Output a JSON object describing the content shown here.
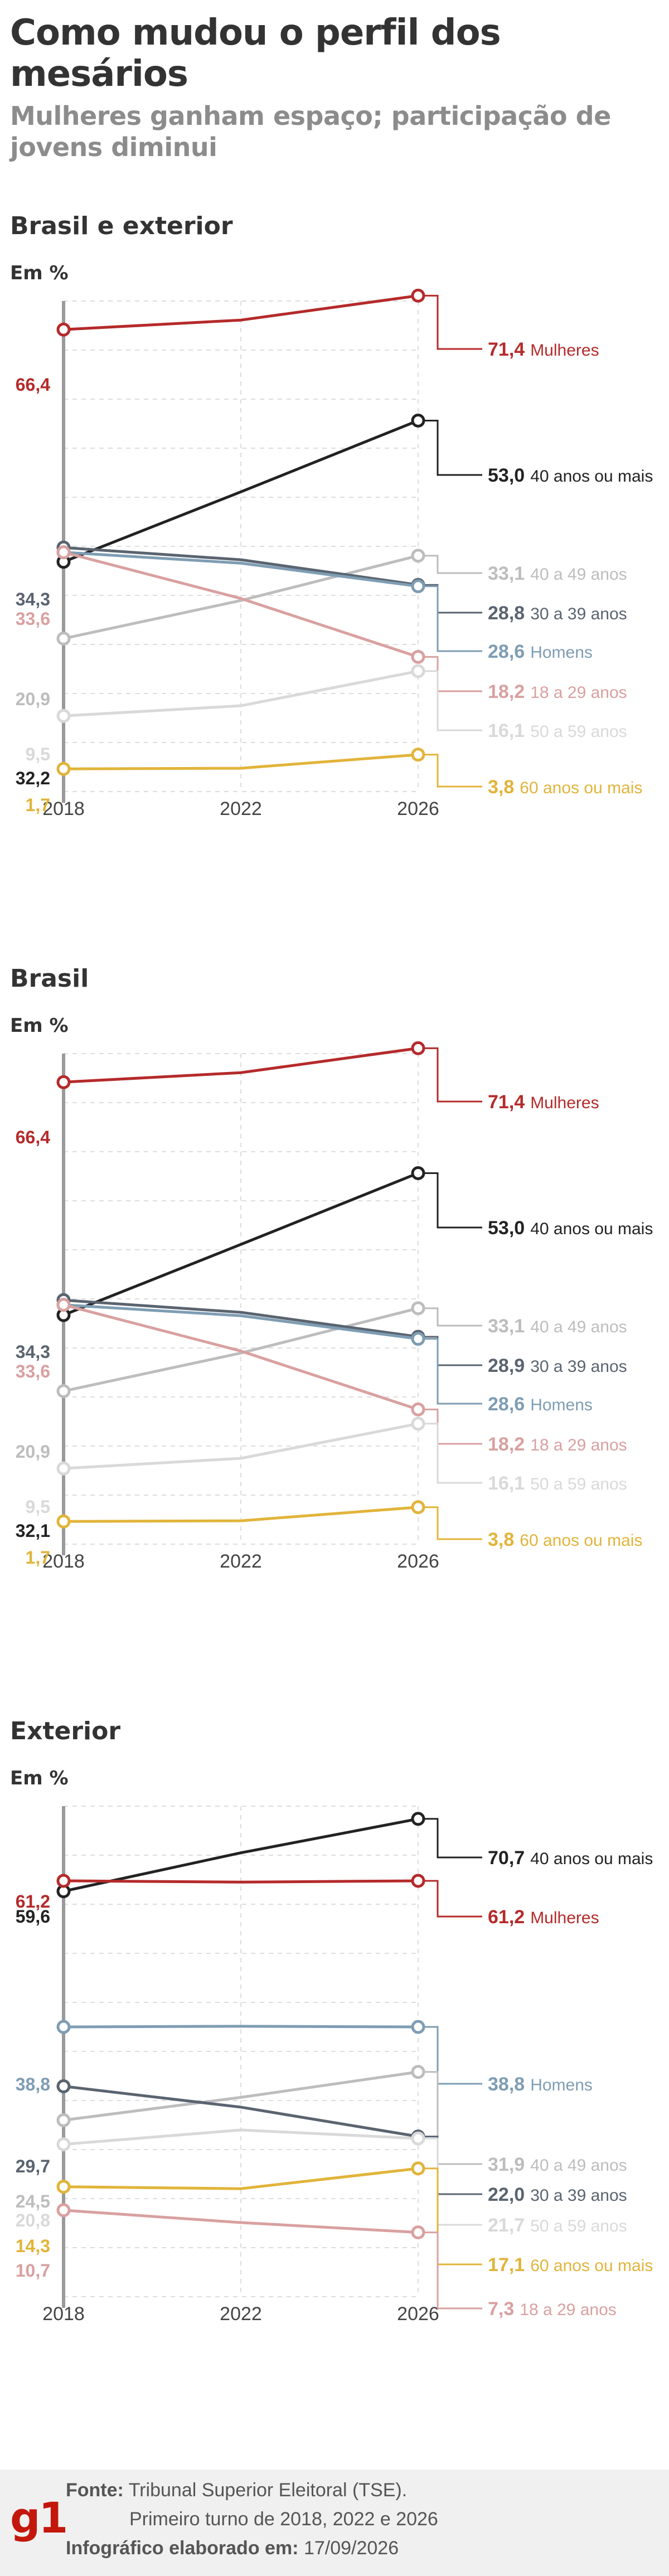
{
  "title": "Como mudou o perfil dos mesários",
  "subtitle": "Mulheres ganham espaço; participação de jovens diminui",
  "colors": {
    "mulheres": "#b52a2a",
    "jovens": "#d9a0a0",
    "mais40": "#222222",
    "faixa40a49": "#bdbdbd",
    "faixa30a39": "#5a6470",
    "homens": "#7e9db3",
    "faixa50a59": "#d9d9d9",
    "mais60": "#e1b43a",
    "axis": "#999999",
    "grid": "#dddddd"
  },
  "chart_data": [
    {
      "type": "line",
      "title": "Brasil e exterior",
      "ylabel": "Em %",
      "x": [
        "2018",
        "2022",
        "2026"
      ],
      "series": [
        {
          "name": "Mulheres",
          "values": [
            66.4,
            67.8,
            71.4
          ],
          "label_start": "66,4",
          "label_end": "71,4",
          "color_key": "mulheres"
        },
        {
          "name": "40 anos ou mais",
          "values": [
            32.2,
            42.5,
            53.0
          ],
          "label_start": "32,2",
          "label_end": "53,0",
          "color_key": "mais40"
        },
        {
          "name": "40 a 49 anos",
          "values": [
            20.9,
            26.5,
            33.1
          ],
          "label_start": "20,9",
          "label_end": "33,1",
          "color_key": "faixa40a49"
        },
        {
          "name": "30 a 39 anos",
          "values": [
            34.3,
            32.5,
            28.8
          ],
          "label_start": "34,3",
          "label_end": "28,8",
          "color_key": "faixa30a39"
        },
        {
          "name": "Homens",
          "values": [
            33.6,
            32.0,
            28.6
          ],
          "label_start": "",
          "label_end": "28,6",
          "color_key": "homens"
        },
        {
          "name": "18 a 29 anos",
          "values": [
            33.6,
            26.8,
            18.2
          ],
          "label_start": "33,6",
          "label_end": "18,2",
          "color_key": "jovens"
        },
        {
          "name": "50 a 59 anos",
          "values": [
            9.5,
            11.0,
            16.1
          ],
          "label_start": "9,5",
          "label_end": "16,1",
          "color_key": "faixa50a59"
        },
        {
          "name": "60 anos ou mais",
          "values": [
            1.7,
            1.8,
            3.8
          ],
          "label_start": "1,7",
          "label_end": "3,8",
          "color_key": "mais60"
        }
      ]
    },
    {
      "type": "line",
      "title": "Brasil",
      "ylabel": "Em %",
      "x": [
        "2018",
        "2022",
        "2026"
      ],
      "series": [
        {
          "name": "Mulheres",
          "values": [
            66.4,
            67.8,
            71.4
          ],
          "label_start": "66,4",
          "label_end": "71,4",
          "color_key": "mulheres"
        },
        {
          "name": "40 anos ou mais",
          "values": [
            32.1,
            42.5,
            53.0
          ],
          "label_start": "32,1",
          "label_end": "53,0",
          "color_key": "mais40"
        },
        {
          "name": "40 a 49 anos",
          "values": [
            20.9,
            26.5,
            33.1
          ],
          "label_start": "20,9",
          "label_end": "33,1",
          "color_key": "faixa40a49"
        },
        {
          "name": "30 a 39 anos",
          "values": [
            34.3,
            32.5,
            28.9
          ],
          "label_start": "34,3",
          "label_end": "28,9",
          "color_key": "faixa30a39"
        },
        {
          "name": "Homens",
          "values": [
            33.6,
            32.0,
            28.6
          ],
          "label_start": "",
          "label_end": "28,6",
          "color_key": "homens"
        },
        {
          "name": "18 a 29 anos",
          "values": [
            33.6,
            26.8,
            18.2
          ],
          "label_start": "33,6",
          "label_end": "18,2",
          "color_key": "jovens"
        },
        {
          "name": "50 a 59 anos",
          "values": [
            9.5,
            11.0,
            16.1
          ],
          "label_start": "9,5",
          "label_end": "16,1",
          "color_key": "faixa50a59"
        },
        {
          "name": "60 anos ou mais",
          "values": [
            1.7,
            1.8,
            3.8
          ],
          "label_start": "1,7",
          "label_end": "3,8",
          "color_key": "mais60"
        }
      ]
    },
    {
      "type": "line",
      "title": "Exterior",
      "ylabel": "Em %",
      "x": [
        "2018",
        "2022",
        "2026"
      ],
      "series": [
        {
          "name": "40 anos ou mais",
          "values": [
            59.6,
            65.5,
            70.7
          ],
          "label_start": "59,6",
          "label_end": "70,7",
          "color_key": "mais40"
        },
        {
          "name": "Mulheres",
          "values": [
            61.2,
            61.0,
            61.2
          ],
          "label_start": "61,2",
          "label_end": "61,2",
          "color_key": "mulheres"
        },
        {
          "name": "Homens",
          "values": [
            38.8,
            38.9,
            38.8
          ],
          "label_start": "38,8",
          "label_end": "38,8",
          "color_key": "homens"
        },
        {
          "name": "40 a 49 anos",
          "values": [
            24.5,
            28.0,
            31.9
          ],
          "label_start": "24,5",
          "label_end": "31,9",
          "color_key": "faixa40a49"
        },
        {
          "name": "30 a 39 anos",
          "values": [
            29.7,
            26.5,
            22.0
          ],
          "label_start": "29,7",
          "label_end": "22,0",
          "color_key": "faixa30a39"
        },
        {
          "name": "50 a 59 anos",
          "values": [
            20.8,
            23.0,
            21.7
          ],
          "label_start": "20,8",
          "label_end": "21,7",
          "color_key": "faixa50a59"
        },
        {
          "name": "60 anos ou mais",
          "values": [
            14.3,
            14.0,
            17.1
          ],
          "label_start": "14,3",
          "label_end": "17,1",
          "color_key": "mais60"
        },
        {
          "name": "18 a 29 anos",
          "values": [
            10.7,
            8.8,
            7.3
          ],
          "label_start": "10,7",
          "label_end": "7,3",
          "color_key": "jovens"
        }
      ]
    }
  ],
  "footer": {
    "logo": "g1",
    "fonte_label": "Fonte:",
    "fonte_text": "Tribunal Superior Eleitoral (TSE).",
    "fonte_text2": "Primeiro turno de 2018, 2022 e 2026",
    "elaborado_label": "Infográfico elaborado em:",
    "elaborado_date": "17/09/2026"
  }
}
